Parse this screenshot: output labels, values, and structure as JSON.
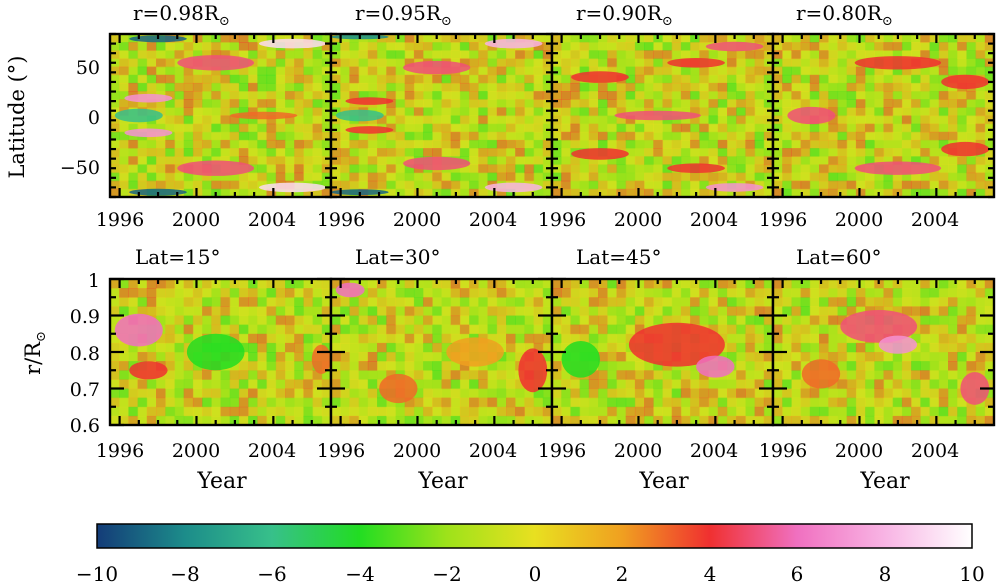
{
  "chart_data": [
    {
      "type": "heatmap",
      "panel": "r098",
      "title": "r=0.98R",
      "title_symbol": "⊙",
      "x": {
        "values": [
          1996,
          2000,
          2004
        ],
        "range": [
          1995.5,
          2007.0
        ]
      },
      "y": {
        "label": "Latitude (°)",
        "ticks": [
          "50",
          "0",
          "−50"
        ],
        "values": [
          50,
          0,
          -50
        ],
        "range": [
          -85,
          85
        ]
      },
      "features": [
        {
          "x": 2005,
          "y": 75,
          "w": 3.5,
          "h": 10,
          "v": 9
        },
        {
          "x": 2005,
          "y": -75,
          "w": 3.5,
          "h": 10,
          "v": 9
        },
        {
          "x": 2001,
          "y": 55,
          "w": 4.0,
          "h": 16,
          "v": 5
        },
        {
          "x": 2001,
          "y": -55,
          "w": 4.0,
          "h": 16,
          "v": 5
        },
        {
          "x": 1997.5,
          "y": 18,
          "w": 2.5,
          "h": 9,
          "v": 7
        },
        {
          "x": 1997.5,
          "y": -18,
          "w": 2.5,
          "h": 9,
          "v": 7
        },
        {
          "x": 1997,
          "y": 0,
          "w": 2.5,
          "h": 14,
          "v": -6
        },
        {
          "x": 1998,
          "y": 80,
          "w": 3.0,
          "h": 7,
          "v": -9
        },
        {
          "x": 1998,
          "y": -80,
          "w": 3.0,
          "h": 7,
          "v": -9
        },
        {
          "x": 2003.5,
          "y": 0,
          "w": 3.5,
          "h": 8,
          "v": 3
        }
      ]
    },
    {
      "type": "heatmap",
      "panel": "r095",
      "title": "r=0.95R",
      "title_symbol": "⊙",
      "x": {
        "values": [
          1996,
          2000,
          2004
        ],
        "range": [
          1995.5,
          2007.0
        ]
      },
      "y": {
        "range": [
          -85,
          85
        ]
      },
      "features": [
        {
          "x": 2005,
          "y": 75,
          "w": 3.0,
          "h": 10,
          "v": 8
        },
        {
          "x": 2005,
          "y": -75,
          "w": 3.0,
          "h": 10,
          "v": 8
        },
        {
          "x": 2001,
          "y": 50,
          "w": 3.5,
          "h": 14,
          "v": 5
        },
        {
          "x": 2001,
          "y": -50,
          "w": 3.5,
          "h": 14,
          "v": 5
        },
        {
          "x": 1997.5,
          "y": 15,
          "w": 2.5,
          "h": 8,
          "v": 4
        },
        {
          "x": 1997.5,
          "y": -15,
          "w": 2.5,
          "h": 8,
          "v": 4
        },
        {
          "x": 1997,
          "y": 0,
          "w": 2.5,
          "h": 12,
          "v": -6
        },
        {
          "x": 1997,
          "y": -80,
          "w": 3.0,
          "h": 6,
          "v": -9
        },
        {
          "x": 1997,
          "y": 82,
          "w": 3.0,
          "h": 5,
          "v": -8
        }
      ]
    },
    {
      "type": "heatmap",
      "panel": "r090",
      "title": "r=0.90R",
      "title_symbol": "⊙",
      "x": {
        "values": [
          1996,
          2000,
          2004
        ],
        "range": [
          1995.5,
          2007.0
        ]
      },
      "y": {
        "range": [
          -85,
          85
        ]
      },
      "features": [
        {
          "x": 2005,
          "y": -75,
          "w": 3.0,
          "h": 9,
          "v": 7
        },
        {
          "x": 2005,
          "y": 72,
          "w": 3.0,
          "h": 10,
          "v": 5
        },
        {
          "x": 2001,
          "y": 0,
          "w": 4.5,
          "h": 10,
          "v": 5
        },
        {
          "x": 1998,
          "y": 40,
          "w": 3.0,
          "h": 12,
          "v": 4
        },
        {
          "x": 1998,
          "y": -40,
          "w": 3.0,
          "h": 12,
          "v": 4
        },
        {
          "x": 2003,
          "y": 55,
          "w": 3.0,
          "h": 10,
          "v": 4
        },
        {
          "x": 2003,
          "y": -55,
          "w": 3.0,
          "h": 10,
          "v": 4
        }
      ]
    },
    {
      "type": "heatmap",
      "panel": "r080",
      "title": "r=0.80R",
      "title_symbol": "⊙",
      "x": {
        "values": [
          1996,
          2000,
          2004
        ],
        "range": [
          1995.5,
          2007.0
        ]
      },
      "y": {
        "range": [
          -85,
          85
        ]
      },
      "features": [
        {
          "x": 1997.5,
          "y": 0,
          "w": 2.5,
          "h": 18,
          "v": 5
        },
        {
          "x": 2002,
          "y": -55,
          "w": 4.5,
          "h": 14,
          "v": 5
        },
        {
          "x": 2002,
          "y": 55,
          "w": 4.5,
          "h": 14,
          "v": 4
        },
        {
          "x": 2005.5,
          "y": 35,
          "w": 2.5,
          "h": 15,
          "v": 4
        },
        {
          "x": 2005.5,
          "y": -35,
          "w": 2.5,
          "h": 15,
          "v": 4
        }
      ]
    },
    {
      "type": "heatmap",
      "panel": "lat15",
      "title": "Lat=15°",
      "x": {
        "label": "Year",
        "values": [
          1996,
          2000,
          2004
        ],
        "range": [
          1995.5,
          2007.0
        ]
      },
      "y": {
        "label": "r/R",
        "label_symbol": "⊙",
        "ticks": [
          "1",
          "0.9",
          "0.8",
          "0.7",
          "0.6"
        ],
        "values": [
          1.0,
          0.9,
          0.8,
          0.7,
          0.6
        ],
        "range": [
          0.6,
          1.0
        ]
      },
      "features": [
        {
          "x": 1997,
          "y": 0.86,
          "w": 2.5,
          "h": 0.09,
          "v": 6
        },
        {
          "x": 1997.5,
          "y": 0.75,
          "w": 2.0,
          "h": 0.05,
          "v": 4
        },
        {
          "x": 2001,
          "y": 0.8,
          "w": 3.0,
          "h": 0.1,
          "v": -4
        },
        {
          "x": 2006.5,
          "y": 0.78,
          "w": 1.0,
          "h": 0.08,
          "v": 3
        }
      ]
    },
    {
      "type": "heatmap",
      "panel": "lat30",
      "title": "Lat=30°",
      "x": {
        "label": "Year",
        "values": [
          1996,
          2000,
          2004
        ],
        "range": [
          1995.5,
          2007.0
        ]
      },
      "y": {
        "range": [
          0.6,
          1.0
        ]
      },
      "features": [
        {
          "x": 1996.5,
          "y": 0.97,
          "w": 1.5,
          "h": 0.04,
          "v": 6
        },
        {
          "x": 2006,
          "y": 0.75,
          "w": 1.5,
          "h": 0.12,
          "v": 4
        },
        {
          "x": 1999,
          "y": 0.7,
          "w": 2.0,
          "h": 0.08,
          "v": 3
        },
        {
          "x": 2003,
          "y": 0.8,
          "w": 3.0,
          "h": 0.08,
          "v": 2
        }
      ]
    },
    {
      "type": "heatmap",
      "panel": "lat45",
      "title": "Lat=45°",
      "x": {
        "label": "Year",
        "values": [
          1996,
          2000,
          2004
        ],
        "range": [
          1995.5,
          2007.0
        ]
      },
      "y": {
        "range": [
          0.6,
          1.0
        ]
      },
      "features": [
        {
          "x": 2002,
          "y": 0.82,
          "w": 5.0,
          "h": 0.12,
          "v": 4
        },
        {
          "x": 2004,
          "y": 0.76,
          "w": 2.0,
          "h": 0.06,
          "v": 6
        },
        {
          "x": 1997,
          "y": 0.78,
          "w": 2.0,
          "h": 0.1,
          "v": -4
        }
      ]
    },
    {
      "type": "heatmap",
      "panel": "lat60",
      "title": "Lat=60°",
      "x": {
        "label": "Year",
        "values": [
          1996,
          2000,
          2004
        ],
        "range": [
          1995.5,
          2007.0
        ]
      },
      "y": {
        "range": [
          0.6,
          1.0
        ]
      },
      "features": [
        {
          "x": 2001,
          "y": 0.87,
          "w": 4.0,
          "h": 0.09,
          "v": 5
        },
        {
          "x": 2002,
          "y": 0.82,
          "w": 2.0,
          "h": 0.05,
          "v": 7
        },
        {
          "x": 2006,
          "y": 0.7,
          "w": 1.5,
          "h": 0.09,
          "v": 5
        },
        {
          "x": 1998,
          "y": 0.74,
          "w": 2.0,
          "h": 0.08,
          "v": 3
        }
      ]
    },
    {
      "type": "colorbar",
      "range": [
        -10,
        10
      ],
      "tick_values": [
        -10,
        -8,
        -6,
        -4,
        -2,
        0,
        2,
        4,
        6,
        8,
        10
      ],
      "tick_labels": [
        "−10",
        "−8",
        "−6",
        "−4",
        "−2",
        "0",
        "2",
        "4",
        "6",
        "8",
        "10"
      ],
      "colors": [
        {
          "v": -10,
          "c": "#143c78"
        },
        {
          "v": -8,
          "c": "#1c8c8a"
        },
        {
          "v": -6,
          "c": "#37c08a"
        },
        {
          "v": -4,
          "c": "#22dd22"
        },
        {
          "v": -2,
          "c": "#9ee21a"
        },
        {
          "v": 0,
          "c": "#e8e020"
        },
        {
          "v": 2,
          "c": "#f0a020"
        },
        {
          "v": 4,
          "c": "#f03030"
        },
        {
          "v": 6,
          "c": "#f070c0"
        },
        {
          "v": 8,
          "c": "#f8b4e4"
        },
        {
          "v": 10,
          "c": "#ffffff"
        }
      ]
    }
  ]
}
